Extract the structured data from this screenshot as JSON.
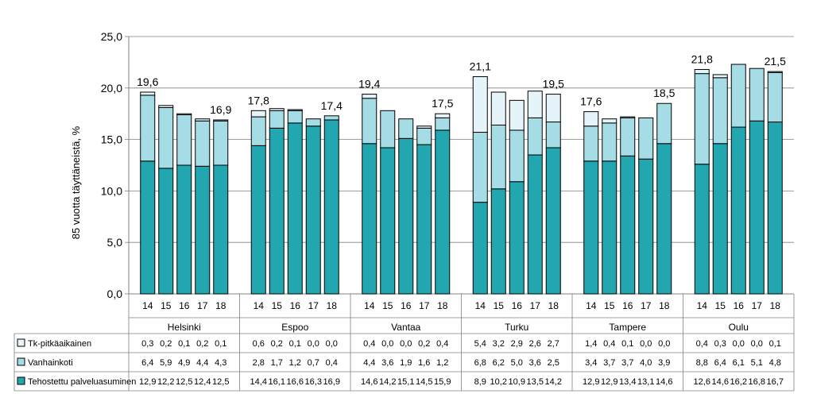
{
  "chart_data": {
    "type": "bar",
    "stacked": true,
    "ylabel": "85 vuotta täyttäneistä, %",
    "ylim": [
      0,
      25
    ],
    "yticks": [
      "0,0",
      "5,0",
      "10,0",
      "15,0",
      "20,0",
      "25,0"
    ],
    "grid": true,
    "legend_position": "data-table-left",
    "groups": [
      "Helsinki",
      "Espoo",
      "Vantaa",
      "Turku",
      "Tampere",
      "Oulu"
    ],
    "years": [
      "14",
      "15",
      "16",
      "17",
      "18"
    ],
    "series": [
      {
        "name": "Tehostettu palveluasuminen",
        "color": "#22a6b0",
        "values": [
          [
            12.9,
            12.2,
            12.5,
            12.4,
            12.5
          ],
          [
            14.4,
            16.1,
            16.6,
            16.3,
            16.9
          ],
          [
            14.6,
            14.2,
            15.1,
            14.5,
            15.9
          ],
          [
            8.9,
            10.2,
            10.9,
            13.5,
            14.2
          ],
          [
            12.9,
            12.9,
            13.4,
            13.1,
            14.6
          ],
          [
            12.6,
            14.6,
            16.2,
            16.8,
            16.7
          ]
        ],
        "labels": [
          [
            "12,9",
            "12,2",
            "12,5",
            "12,4",
            "12,5"
          ],
          [
            "14,4",
            "16,1",
            "16,6",
            "16,3",
            "16,9"
          ],
          [
            "14,6",
            "14,2",
            "15,1",
            "14,5",
            "15,9"
          ],
          [
            "8,9",
            "10,2",
            "10,9",
            "13,5",
            "14,2"
          ],
          [
            "12,9",
            "12,9",
            "13,4",
            "13,1",
            "14,6"
          ],
          [
            "12,6",
            "14,6",
            "16,2",
            "16,8",
            "16,7"
          ]
        ]
      },
      {
        "name": "Vanhainkoti",
        "color": "#a6dce6",
        "values": [
          [
            6.4,
            5.9,
            4.9,
            4.4,
            4.3
          ],
          [
            2.8,
            1.7,
            1.2,
            0.7,
            0.4
          ],
          [
            4.4,
            3.6,
            1.9,
            1.6,
            1.2
          ],
          [
            6.8,
            6.2,
            5.0,
            3.6,
            2.5
          ],
          [
            3.4,
            3.7,
            3.7,
            4.0,
            3.9
          ],
          [
            8.8,
            6.4,
            6.1,
            5.1,
            4.8
          ]
        ],
        "labels": [
          [
            "6,4",
            "5,9",
            "4,9",
            "4,4",
            "4,3"
          ],
          [
            "2,8",
            "1,7",
            "1,2",
            "0,7",
            "0,4"
          ],
          [
            "4,4",
            "3,6",
            "1,9",
            "1,6",
            "1,2"
          ],
          [
            "6,8",
            "6,2",
            "5,0",
            "3,6",
            "2,5"
          ],
          [
            "3,4",
            "3,7",
            "3,7",
            "4,0",
            "3,9"
          ],
          [
            "8,8",
            "6,4",
            "6,1",
            "5,1",
            "4,8"
          ]
        ]
      },
      {
        "name": "Tk-pitkäaikainen",
        "color": "#e4f4f8",
        "values": [
          [
            0.3,
            0.2,
            0.1,
            0.2,
            0.1
          ],
          [
            0.6,
            0.2,
            0.1,
            0.0,
            0.0
          ],
          [
            0.4,
            0.0,
            0.0,
            0.2,
            0.4
          ],
          [
            5.4,
            3.2,
            2.9,
            2.6,
            2.7
          ],
          [
            1.4,
            0.4,
            0.1,
            0.0,
            0.0
          ],
          [
            0.4,
            0.3,
            0.0,
            0.0,
            0.1
          ]
        ],
        "labels": [
          [
            "0,3",
            "0,2",
            "0,1",
            "0,2",
            "0,1"
          ],
          [
            "0,6",
            "0,2",
            "0,1",
            "0,0",
            "0,0"
          ],
          [
            "0,4",
            "0,0",
            "0,0",
            "0,2",
            "0,4"
          ],
          [
            "5,4",
            "3,2",
            "2,9",
            "2,6",
            "2,7"
          ],
          [
            "1,4",
            "0,4",
            "0,1",
            "0,0",
            "0,0"
          ],
          [
            "0,4",
            "0,3",
            "0,0",
            "0,0",
            "0,1"
          ]
        ]
      }
    ],
    "annotations": [
      {
        "group": 0,
        "year": 0,
        "text": "19,6"
      },
      {
        "group": 0,
        "year": 4,
        "text": "16,9"
      },
      {
        "group": 1,
        "year": 0,
        "text": "17,8"
      },
      {
        "group": 1,
        "year": 4,
        "text": "17,4"
      },
      {
        "group": 2,
        "year": 0,
        "text": "19,4"
      },
      {
        "group": 2,
        "year": 4,
        "text": "17,5"
      },
      {
        "group": 3,
        "year": 0,
        "text": "21,1"
      },
      {
        "group": 3,
        "year": 4,
        "text": "19,5"
      },
      {
        "group": 4,
        "year": 0,
        "text": "17,6"
      },
      {
        "group": 4,
        "year": 4,
        "text": "18,5"
      },
      {
        "group": 5,
        "year": 0,
        "text": "21,8"
      },
      {
        "group": 5,
        "year": 4,
        "text": "21,5"
      }
    ]
  }
}
